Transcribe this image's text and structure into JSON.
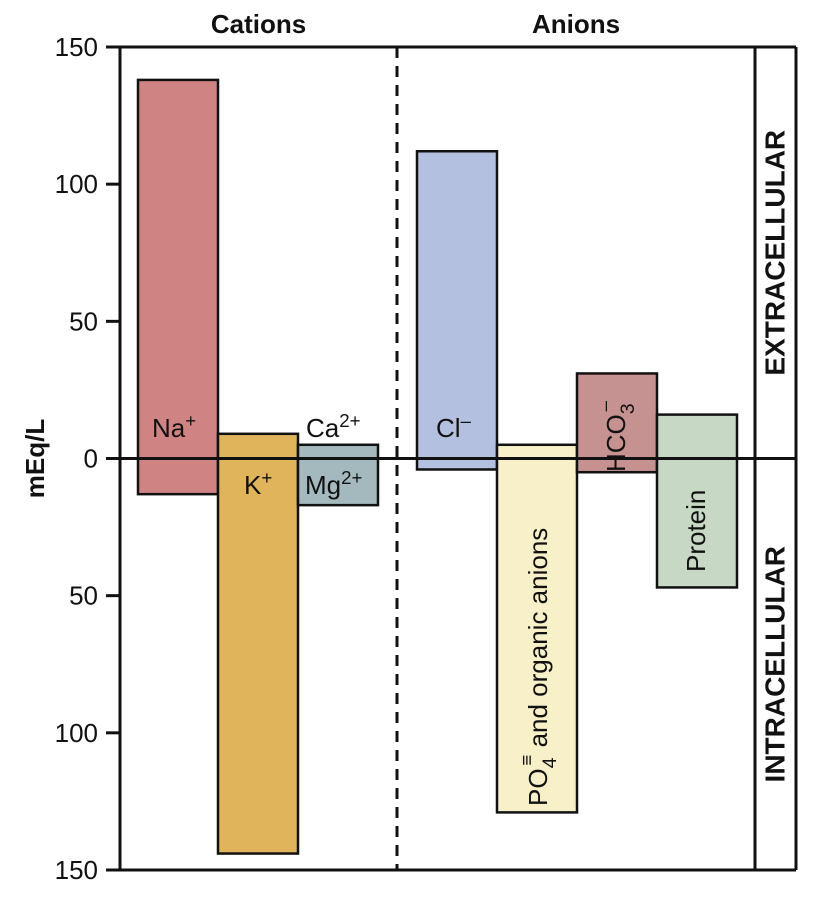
{
  "chart_data": {
    "type": "bar",
    "title": "",
    "ylabel": "mEq/L",
    "ylim": [
      -150,
      150
    ],
    "y_tick_values": [
      150,
      100,
      50,
      0,
      -50,
      -100,
      -150
    ],
    "y_tick_labels": [
      "150",
      "100",
      "50",
      "0",
      "50",
      "100",
      "150"
    ],
    "groups": [
      {
        "name": "Cations",
        "label": "Cations"
      },
      {
        "name": "Anions",
        "label": "Anions"
      }
    ],
    "compartments": {
      "extracellular": "EXTRACELLULAR",
      "intracellular": "INTRACELLULAR"
    },
    "series": [
      {
        "name": "Extracellular",
        "direction": "up"
      },
      {
        "name": "Intracellular",
        "direction": "down"
      }
    ],
    "bars": [
      {
        "id": "na",
        "group": "Cations",
        "slot": 0,
        "extracellular": 138,
        "intracellular": 13,
        "color": "#d08383"
      },
      {
        "id": "k",
        "group": "Cations",
        "slot": 1,
        "extracellular": 9,
        "intracellular": 144,
        "color": "#e0b45a"
      },
      {
        "id": "ca-mg",
        "group": "Cations",
        "slot": 2,
        "extracellular": 5,
        "intracellular": 17,
        "color": "#a3b9bd"
      },
      {
        "id": "cl",
        "group": "Anions",
        "slot": 0,
        "extracellular": 112,
        "intracellular": 4,
        "color": "#b4c0df"
      },
      {
        "id": "po4",
        "group": "Anions",
        "slot": 1,
        "extracellular": 5,
        "intracellular": 129,
        "color": "#f8f0c8"
      },
      {
        "id": "hco3",
        "group": "Anions",
        "slot": 2,
        "extracellular": 31,
        "intracellular": 5,
        "color": "#c59191"
      },
      {
        "id": "protein",
        "group": "Anions",
        "slot": 3,
        "extracellular": 16,
        "intracellular": 47,
        "color": "#c7d8c4"
      }
    ],
    "labels": {
      "na": {
        "base": "Na",
        "sup": "+"
      },
      "k": {
        "base": "K",
        "sup": "+"
      },
      "ca": {
        "base": "Ca",
        "sup": "2+"
      },
      "mg": {
        "base": "Mg",
        "sup": "2+"
      },
      "cl": {
        "base": "Cl",
        "sup": "–"
      },
      "hco3": {
        "base": "HCO",
        "sub": "3",
        "sup": "–"
      },
      "po4": {
        "base": "PO",
        "sub": "4",
        "sup": "≡",
        "rest": " and organic anions"
      },
      "protein": {
        "base": "Protein"
      }
    },
    "grid": false,
    "legend": "none"
  }
}
